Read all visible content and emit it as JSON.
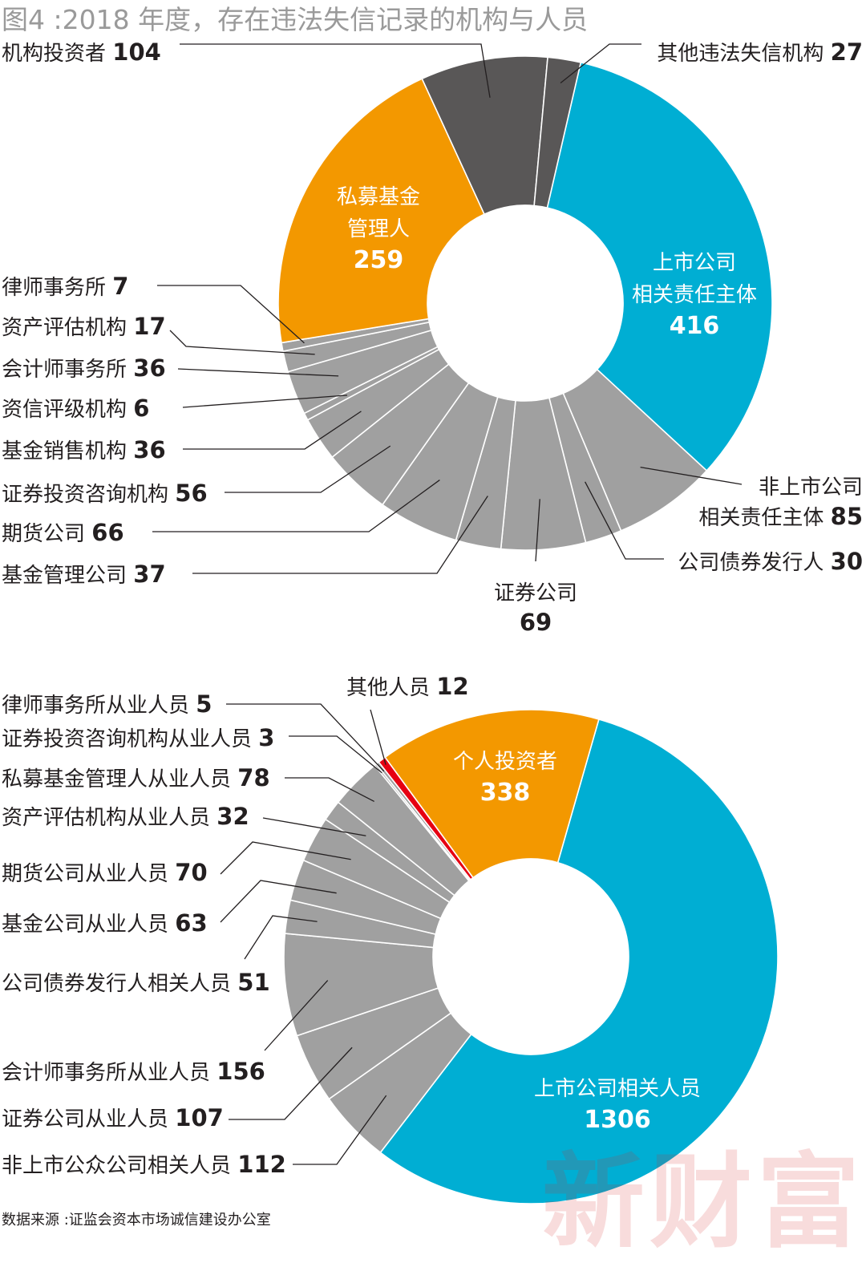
{
  "title": "图4 :2018 年度，存在违法失信记录的机构与人员",
  "source": "数据来源 :证监会资本市场诚信建设办公室",
  "watermark": "新财富",
  "colors": {
    "blue": "#00aed3",
    "orange": "#f39800",
    "dark": "#595757",
    "gray": "#a0a0a0",
    "red": "#e60012",
    "line": "#231f20"
  },
  "chart_data": [
    {
      "type": "pie",
      "name": "机构",
      "slices": [
        {
          "label": "上市公司相关责任主体",
          "value": 416,
          "color": "blue"
        },
        {
          "label": "非上市公司相关责任主体",
          "value": 85,
          "color": "gray"
        },
        {
          "label": "公司债券发行人",
          "value": 30,
          "color": "gray"
        },
        {
          "label": "证券公司",
          "value": 69,
          "color": "gray"
        },
        {
          "label": "基金管理公司",
          "value": 37,
          "color": "gray"
        },
        {
          "label": "期货公司",
          "value": 66,
          "color": "gray"
        },
        {
          "label": "证券投资咨询机构",
          "value": 56,
          "color": "gray"
        },
        {
          "label": "基金销售机构",
          "value": 36,
          "color": "gray"
        },
        {
          "label": "资信评级机构",
          "value": 6,
          "color": "gray"
        },
        {
          "label": "会计师事务所",
          "value": 36,
          "color": "gray"
        },
        {
          "label": "资产评估机构",
          "value": 17,
          "color": "gray"
        },
        {
          "label": "律师事务所",
          "value": 7,
          "color": "gray"
        },
        {
          "label": "私募基金管理人",
          "value": 259,
          "color": "orange"
        },
        {
          "label": "机构投资者",
          "value": 104,
          "color": "dark"
        },
        {
          "label": "其他违法失信机构",
          "value": 27,
          "color": "dark"
        }
      ],
      "inner_labels": [
        {
          "lines": [
            "上市公司",
            "相关责任主体"
          ],
          "value": "416"
        },
        {
          "lines": [
            "私募基金",
            "管理人"
          ],
          "value": "259"
        }
      ]
    },
    {
      "type": "pie",
      "name": "人员",
      "slices": [
        {
          "label": "上市公司相关人员",
          "value": 1306,
          "color": "blue"
        },
        {
          "label": "非上市公众公司相关人员",
          "value": 112,
          "color": "gray"
        },
        {
          "label": "证券公司从业人员",
          "value": 107,
          "color": "gray"
        },
        {
          "label": "会计师事务所从业人员",
          "value": 156,
          "color": "gray"
        },
        {
          "label": "公司债券发行人相关人员",
          "value": 51,
          "color": "gray"
        },
        {
          "label": "基金公司从业人员",
          "value": 63,
          "color": "gray"
        },
        {
          "label": "期货公司从业人员",
          "value": 70,
          "color": "gray"
        },
        {
          "label": "资产评估机构从业人员",
          "value": 32,
          "color": "gray"
        },
        {
          "label": "私募基金管理人从业人员",
          "value": 78,
          "color": "gray"
        },
        {
          "label": "证券投资咨询机构从业人员",
          "value": 3,
          "color": "gray"
        },
        {
          "label": "律师事务所从业人员",
          "value": 5,
          "color": "gray"
        },
        {
          "label": "其他人员",
          "value": 12,
          "color": "red"
        },
        {
          "label": "个人投资者",
          "value": 338,
          "color": "orange"
        }
      ],
      "inner_labels": [
        {
          "lines": [
            "上市公司相关人员"
          ],
          "value": "1306"
        },
        {
          "lines": [
            "个人投资者"
          ],
          "value": "338"
        }
      ]
    }
  ]
}
